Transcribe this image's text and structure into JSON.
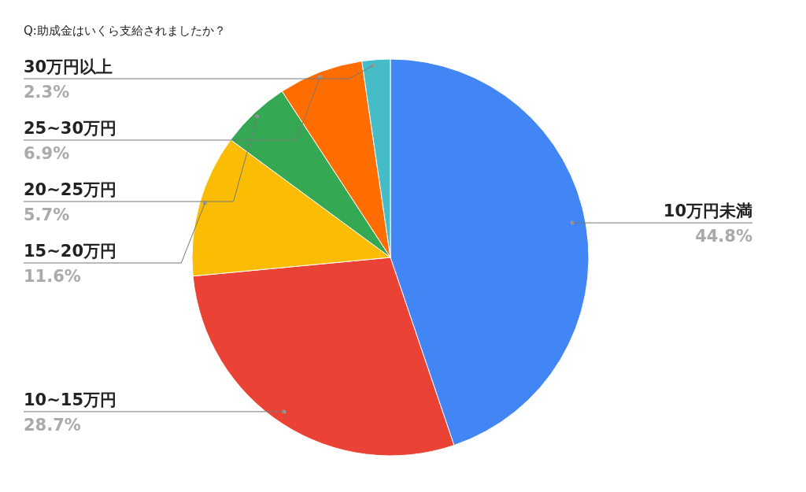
{
  "chart_data": {
    "type": "pie",
    "title": "Q:助成金はいくら支給されましたか？",
    "categories": [
      "10万円未満",
      "10~15万円",
      "15~20万円",
      "20~25万円",
      "25~30万円",
      "30万円以上"
    ],
    "values": [
      44.8,
      28.7,
      11.6,
      5.7,
      6.9,
      2.3
    ],
    "value_labels": [
      "44.8%",
      "28.7%",
      "11.6%",
      "5.7%",
      "6.9%",
      "2.3%"
    ],
    "colors": [
      "#4285f4",
      "#ea4335",
      "#fbbc04",
      "#34a853",
      "#ff6d01",
      "#46bdc6"
    ],
    "legend": false
  }
}
